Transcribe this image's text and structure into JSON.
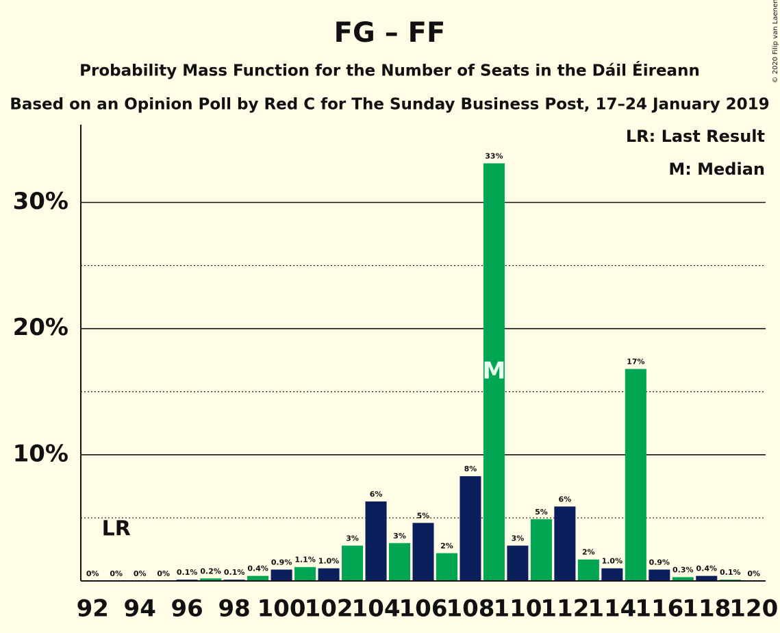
{
  "chart_data": {
    "type": "bar",
    "title": "FG – FF",
    "subtitle": "Probability Mass Function for the Number of Seats in the Dáil Éireann",
    "subtitle2": "Based on an Opinion Poll by Red C for The Sunday Business Post, 17–24 January 2019",
    "copyright": "© 2020 Filip van Laenen",
    "x": [
      92,
      93,
      94,
      95,
      96,
      97,
      98,
      99,
      100,
      101,
      102,
      103,
      104,
      105,
      106,
      107,
      108,
      109,
      110,
      111,
      112,
      113,
      114,
      115,
      116,
      117,
      118,
      119,
      120
    ],
    "values": [
      0,
      0,
      0,
      0,
      0.1,
      0.2,
      0.1,
      0.4,
      0.9,
      1.1,
      1.0,
      2.8,
      6.3,
      3.0,
      4.6,
      2.2,
      8.3,
      33.1,
      2.8,
      4.9,
      5.9,
      1.7,
      1.0,
      16.8,
      0.9,
      0.3,
      0.4,
      0.1,
      0
    ],
    "value_labels": [
      "0%",
      "0%",
      "0%",
      "0%",
      "0.1%",
      "0.2%",
      "0.1%",
      "0.4%",
      "0.9%",
      "1.1%",
      "1.0%",
      "3%",
      "6%",
      "3%",
      "5%",
      "2%",
      "8%",
      "33%",
      "3%",
      "5%",
      "6%",
      "2%",
      "1.0%",
      "17%",
      "0.9%",
      "0.3%",
      "0.4%",
      "0.1%",
      "0%"
    ],
    "colors": [
      "#0a1f5c",
      "#00a651"
    ],
    "xlim": [
      91.5,
      120.5
    ],
    "xticks": [
      92,
      94,
      96,
      98,
      100,
      102,
      104,
      106,
      108,
      110,
      112,
      114,
      116,
      118,
      120
    ],
    "ylim": [
      0,
      36
    ],
    "yticks": [
      {
        "value": 10,
        "label": "10%"
      },
      {
        "value": 20,
        "label": "20%"
      },
      {
        "value": 30,
        "label": "30%"
      }
    ],
    "minor_yticks": [
      5,
      15,
      25
    ],
    "median": {
      "x": 109,
      "label": "M"
    },
    "last_result": {
      "x": 93,
      "label": "LR"
    },
    "legend": [
      "LR: Last Result",
      "M: Median"
    ]
  }
}
